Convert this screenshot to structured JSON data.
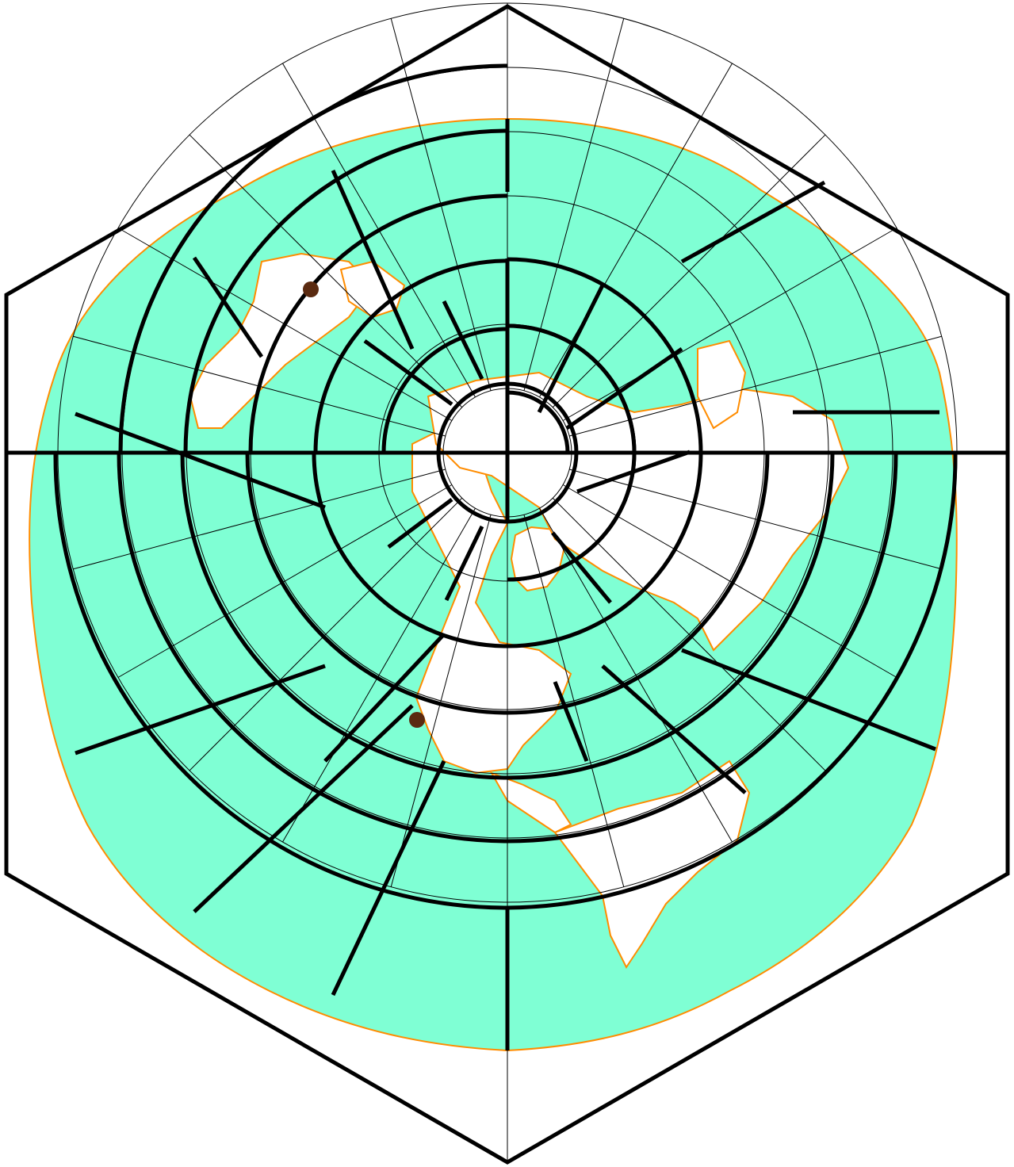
{
  "map": {
    "projection": "polar",
    "frame_shape": "hexagon",
    "colors": {
      "background": "#ffffff",
      "ocean": "#7fffd4",
      "coastline": "#ff8c00",
      "land": "#ffffff",
      "frame": "#000000",
      "grid": "#000000",
      "marker": "#5a2a10"
    },
    "graticule": {
      "rings": 7,
      "meridians": 24
    },
    "markers": [
      {
        "name": "marker-1",
        "icon": "dot-marker"
      },
      {
        "name": "marker-2",
        "icon": "dot-marker"
      }
    ]
  }
}
